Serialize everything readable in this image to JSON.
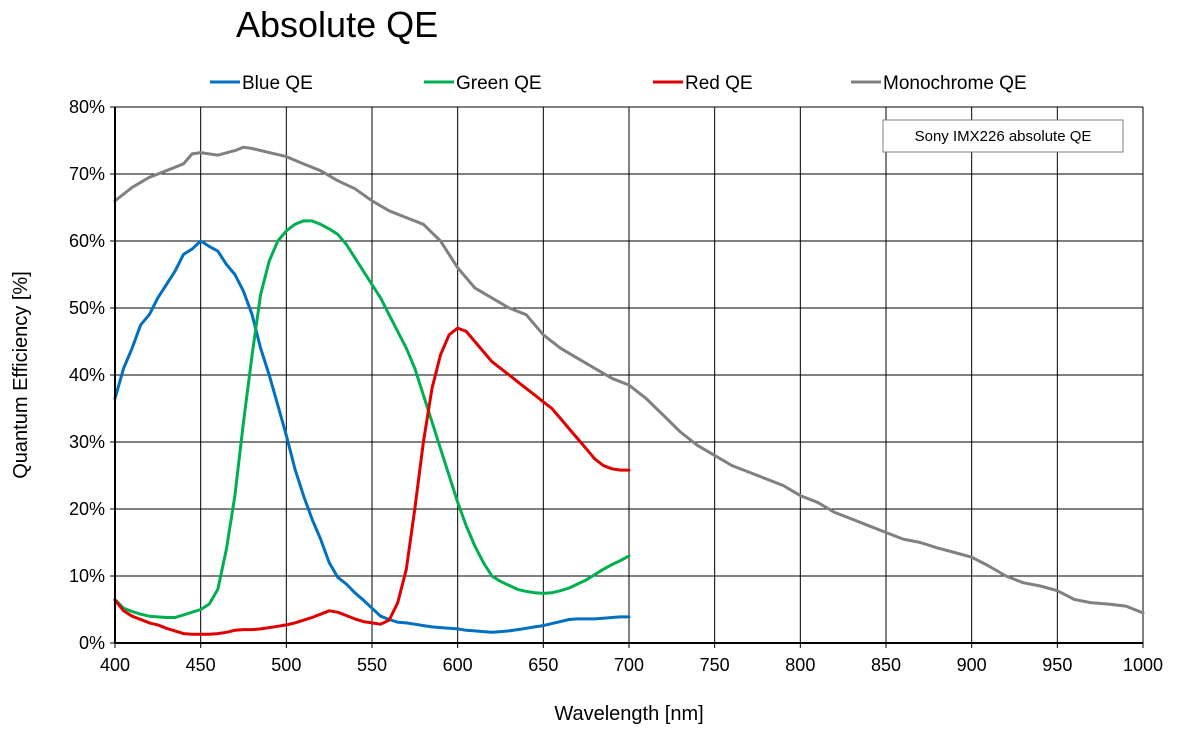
{
  "chart_data": {
    "type": "line",
    "title": "Absolute QE",
    "xlabel": "Wavelength [nm]",
    "ylabel": "Quantum Efficiency [%]",
    "xlim": [
      400,
      1000
    ],
    "ylim": [
      0,
      80
    ],
    "xticks": [
      "400",
      "450",
      "500",
      "550",
      "600",
      "650",
      "700",
      "750",
      "800",
      "850",
      "900",
      "950",
      "1000"
    ],
    "yticks": [
      "0%",
      "10%",
      "20%",
      "30%",
      "40%",
      "50%",
      "60%",
      "70%",
      "80%"
    ],
    "grid": true,
    "legend_position": "top",
    "annotation": "Sony IMX226 absolute QE",
    "series": [
      {
        "name": "Blue QE",
        "color": "#0070C0",
        "x": [
          400,
          405,
          410,
          415,
          420,
          425,
          430,
          435,
          440,
          445,
          450,
          455,
          460,
          465,
          470,
          475,
          480,
          485,
          490,
          495,
          500,
          505,
          510,
          515,
          520,
          525,
          530,
          535,
          540,
          545,
          550,
          555,
          560,
          565,
          570,
          575,
          580,
          585,
          590,
          595,
          600,
          605,
          610,
          615,
          620,
          625,
          630,
          635,
          640,
          645,
          650,
          655,
          660,
          665,
          670,
          675,
          680,
          685,
          690,
          695,
          700
        ],
        "y": [
          36.5,
          41,
          44,
          47.5,
          49,
          51.5,
          53.5,
          55.5,
          58,
          58.8,
          60,
          59.2,
          58.5,
          56.5,
          55,
          52.5,
          49,
          44,
          40,
          35.5,
          31,
          26,
          22,
          18.5,
          15.5,
          12,
          9.8,
          8.8,
          7.5,
          6.4,
          5.2,
          4,
          3.5,
          3.1,
          3,
          2.8,
          2.6,
          2.4,
          2.3,
          2.2,
          2.1,
          1.9,
          1.8,
          1.7,
          1.6,
          1.7,
          1.8,
          2,
          2.2,
          2.4,
          2.6,
          2.9,
          3.2,
          3.5,
          3.6,
          3.6,
          3.6,
          3.7,
          3.8,
          3.9,
          3.9
        ]
      },
      {
        "name": "Green QE",
        "color": "#00B050",
        "x": [
          400,
          405,
          410,
          415,
          420,
          425,
          430,
          435,
          440,
          445,
          450,
          455,
          460,
          465,
          470,
          475,
          480,
          485,
          490,
          495,
          500,
          505,
          510,
          515,
          520,
          525,
          530,
          535,
          540,
          545,
          550,
          555,
          560,
          565,
          570,
          575,
          580,
          585,
          590,
          595,
          600,
          605,
          610,
          615,
          620,
          625,
          630,
          635,
          640,
          645,
          650,
          655,
          660,
          665,
          670,
          675,
          680,
          685,
          690,
          695,
          700
        ],
        "y": [
          6.5,
          5.2,
          4.7,
          4.3,
          4,
          3.9,
          3.8,
          3.8,
          4.2,
          4.6,
          5,
          5.8,
          8,
          14,
          22,
          33,
          43,
          52,
          57,
          60,
          61.5,
          62.5,
          63,
          63,
          62.5,
          61.8,
          61,
          59.5,
          57.5,
          55.5,
          53.5,
          51.5,
          49,
          46.5,
          44,
          41,
          37,
          33,
          29,
          25,
          21,
          17.5,
          14.5,
          12,
          10,
          9.2,
          8.6,
          8,
          7.7,
          7.5,
          7.4,
          7.5,
          7.8,
          8.2,
          8.8,
          9.4,
          10.2,
          11,
          11.7,
          12.3,
          13
        ]
      },
      {
        "name": "Red QE",
        "color": "#E00000",
        "x": [
          400,
          405,
          410,
          415,
          420,
          425,
          430,
          435,
          440,
          445,
          450,
          455,
          460,
          465,
          470,
          475,
          480,
          485,
          490,
          495,
          500,
          505,
          510,
          515,
          520,
          525,
          530,
          535,
          540,
          545,
          550,
          555,
          560,
          565,
          570,
          575,
          580,
          585,
          590,
          595,
          600,
          605,
          610,
          615,
          620,
          625,
          630,
          635,
          640,
          645,
          650,
          655,
          660,
          665,
          670,
          675,
          680,
          685,
          690,
          695,
          700
        ],
        "y": [
          6.4,
          4.8,
          4,
          3.5,
          3,
          2.7,
          2.2,
          1.8,
          1.4,
          1.3,
          1.3,
          1.3,
          1.4,
          1.6,
          1.9,
          2,
          2,
          2.1,
          2.3,
          2.5,
          2.7,
          3,
          3.4,
          3.8,
          4.3,
          4.8,
          4.6,
          4.1,
          3.6,
          3.2,
          3,
          2.8,
          3.4,
          6,
          11,
          20,
          30,
          38,
          43,
          46,
          47,
          46.5,
          45,
          43.5,
          42,
          41,
          40,
          39,
          38,
          37,
          36,
          35,
          33.5,
          32,
          30.5,
          29,
          27.5,
          26.5,
          26,
          25.8,
          25.8
        ]
      },
      {
        "name": "Monochrome QE",
        "color": "#808080",
        "x": [
          400,
          410,
          420,
          430,
          440,
          445,
          450,
          460,
          470,
          475,
          480,
          490,
          500,
          510,
          520,
          530,
          540,
          550,
          560,
          570,
          580,
          590,
          600,
          610,
          620,
          630,
          640,
          650,
          660,
          670,
          680,
          690,
          700,
          710,
          720,
          730,
          740,
          750,
          760,
          770,
          780,
          790,
          800,
          810,
          820,
          830,
          840,
          850,
          860,
          870,
          880,
          890,
          900,
          910,
          920,
          930,
          940,
          950,
          960,
          970,
          980,
          990,
          1000
        ],
        "y": [
          66,
          68,
          69.5,
          70.5,
          71.5,
          73,
          73.2,
          72.8,
          73.5,
          74,
          73.8,
          73.2,
          72.6,
          71.5,
          70.5,
          69,
          67.8,
          66,
          64.5,
          63.5,
          62.5,
          60,
          56,
          53,
          51.5,
          50,
          49,
          46,
          44,
          42.5,
          41,
          39.5,
          38.5,
          36.5,
          34,
          31.5,
          29.5,
          28,
          26.5,
          25.5,
          24.5,
          23.5,
          22,
          21,
          19.5,
          18.5,
          17.5,
          16.5,
          15.5,
          15,
          14.2,
          13.5,
          12.8,
          11.5,
          10,
          9,
          8.5,
          7.8,
          6.5,
          6,
          5.8,
          5.5,
          4.5
        ]
      }
    ]
  }
}
